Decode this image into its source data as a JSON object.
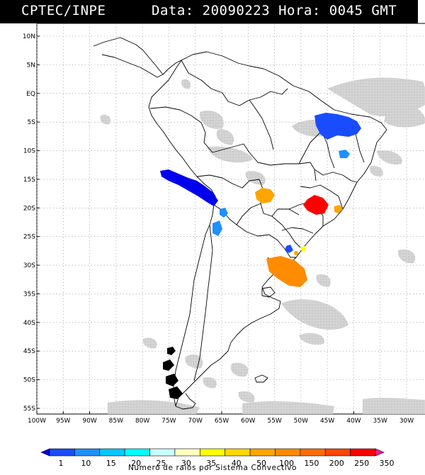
{
  "header": {
    "agency": "CPTEC/INPE",
    "datetime": "Data: 20090223 Hora: 0045 GMT"
  },
  "map": {
    "lat_labels": [
      "10N",
      "5N",
      "EQ",
      "5S",
      "10S",
      "15S",
      "20S",
      "25S",
      "30S",
      "35S",
      "40S",
      "45S",
      "50S",
      "55S"
    ],
    "lon_labels": [
      "100W",
      "95W",
      "90W",
      "85W",
      "80W",
      "75W",
      "70W",
      "65W",
      "60W",
      "55W",
      "50W",
      "45W",
      "40W",
      "35W",
      "30W"
    ],
    "background_color": "#ffffff",
    "cloud_color": "#c8c8c8",
    "border_color": "#000000"
  },
  "legend": {
    "values": [
      "1",
      "10",
      "15",
      "20",
      "25",
      "30",
      "35",
      "40",
      "50",
      "100",
      "150",
      "200",
      "250",
      "350"
    ],
    "colors": [
      "#0000ee",
      "#1a4cff",
      "#1e90ff",
      "#00c8ff",
      "#00ffff",
      "#c8ffff",
      "#ffffc0",
      "#ffff00",
      "#ffd700",
      "#ffa500",
      "#ff8c00",
      "#ff6a00",
      "#ff4500",
      "#ff0000",
      "#ff1493"
    ],
    "title": "Numero de raios por Sistema Convectivo"
  }
}
